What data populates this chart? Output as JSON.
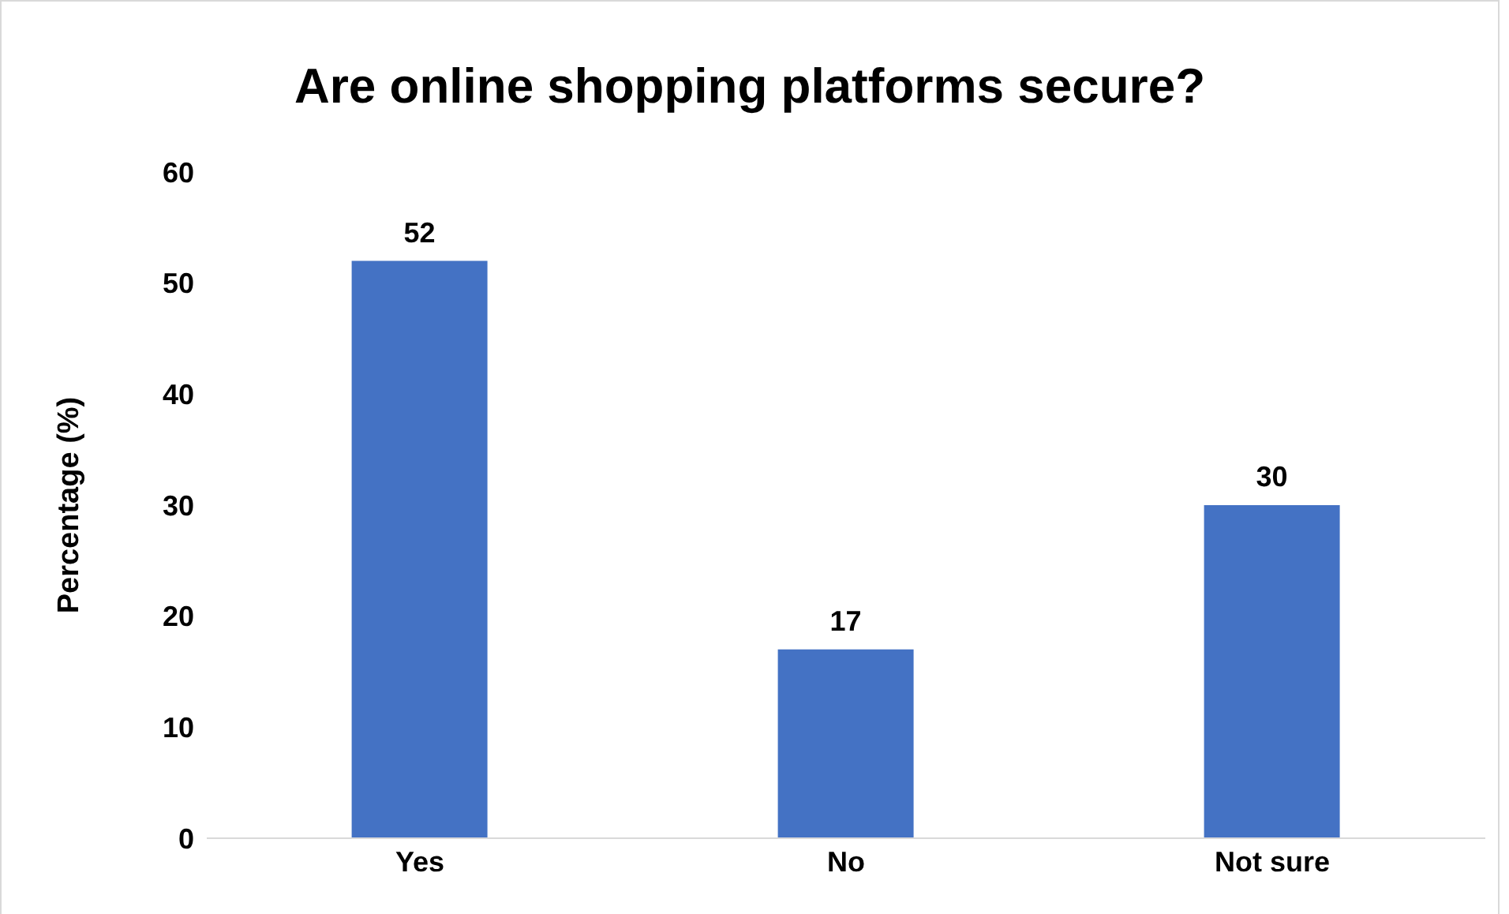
{
  "chart_data": {
    "type": "bar",
    "title": "Are online shopping platforms secure?",
    "ylabel": "Percentage (%)",
    "categories": [
      "Yes",
      "No",
      "Not sure"
    ],
    "values": [
      52,
      17,
      30
    ],
    "color": "#4472c4",
    "ylim": [
      0,
      60
    ],
    "yticks": [
      0,
      10,
      20,
      30,
      40,
      50,
      60
    ],
    "grid": false,
    "data_labels": true
  }
}
